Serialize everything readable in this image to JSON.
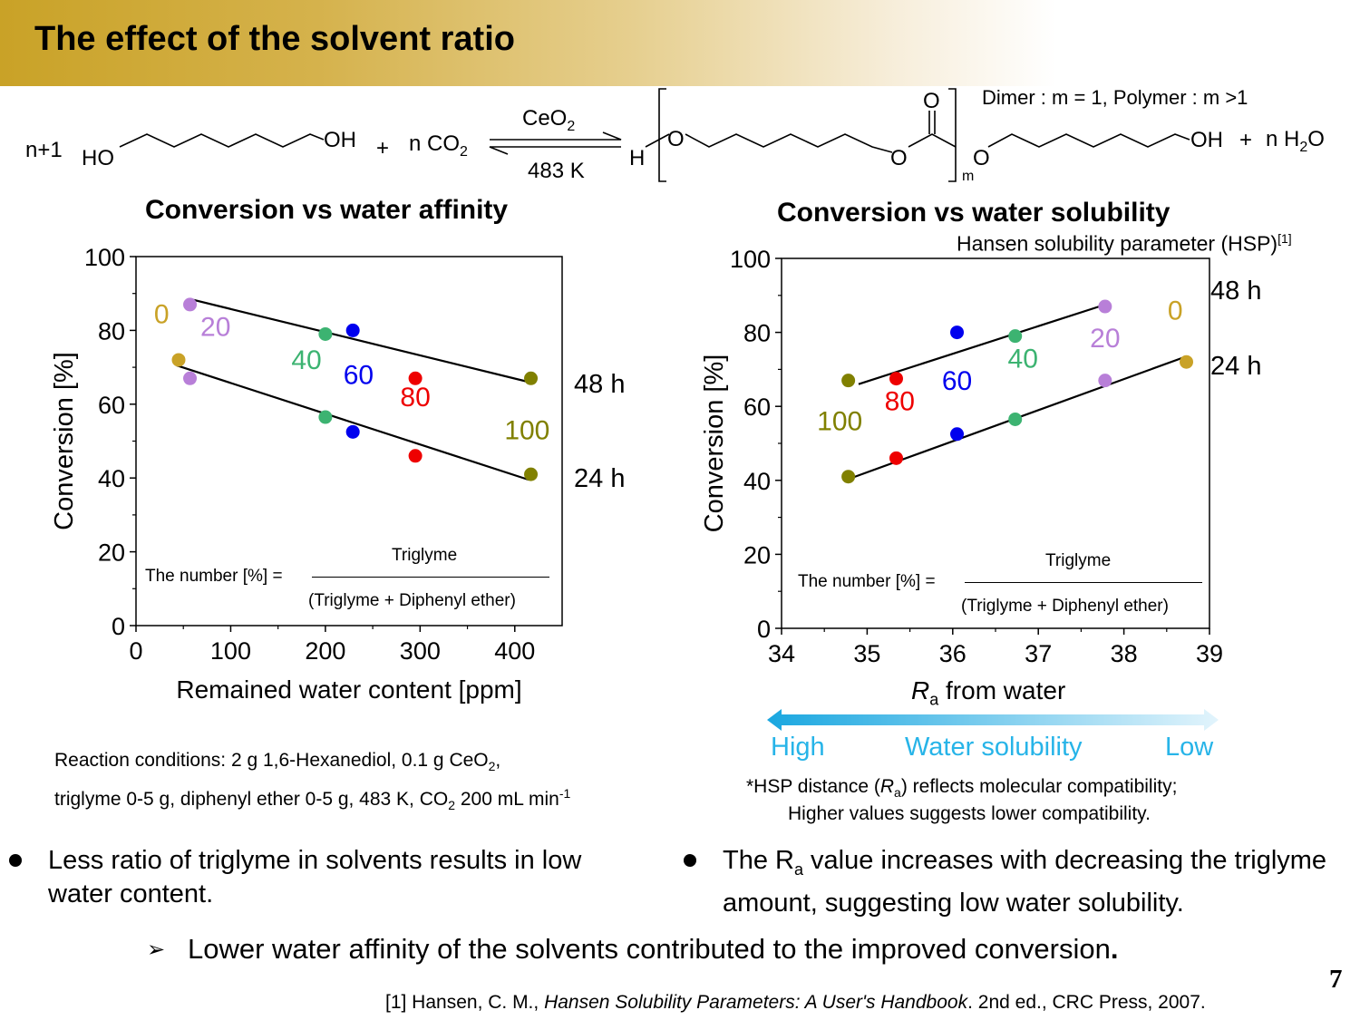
{
  "slide": {
    "title": "The effect of the solvent ratio",
    "page_number": "7"
  },
  "reaction": {
    "coef": "n+1",
    "ho": "HO",
    "oh": "OH",
    "plus1": "+",
    "co2": "n CO",
    "co2_sub": "2",
    "catalyst": "CeO",
    "catalyst_sub": "2",
    "temp": "483 K",
    "h": "H",
    "o1": "O",
    "o2": "O",
    "o3": "O",
    "o4": "O",
    "m": "m",
    "oh2": "OH",
    "plus2": "+",
    "water": "n H",
    "water_sub": "2",
    "water_o": "O",
    "note": "Dimer : m = 1, Polymer : m >1"
  },
  "left_panel": {
    "title": "Conversion vs water affinity",
    "formula_lhs": "The number [%] =",
    "formula_num": "Triglyme",
    "formula_den": "(Triglyme + Diphenyl ether)",
    "conditions_line1": "Reaction conditions: 2 g 1,6-Hexanediol, 0.1 g CeO",
    "conditions_sub1": "2",
    "conditions_tail1": ",",
    "conditions_line2": "triglyme 0-5 g, diphenyl ether 0-5 g, 483 K, CO",
    "conditions_sub2": "2",
    "conditions_tail2": " 200 mL min",
    "conditions_sup2": "-1"
  },
  "right_panel": {
    "title": "Conversion vs water solubility",
    "subtitle": "Hansen solubility parameter (HSP)",
    "subtitle_ref": "[1]",
    "formula_lhs": "The number [%] =",
    "formula_num": "Triglyme",
    "formula_den": "(Triglyme + Diphenyl ether)",
    "arrow_high": "High",
    "arrow_mid": "Water solubility",
    "arrow_low": "Low",
    "note_line1_a": "*HSP distance (",
    "note_line1_ra": "R",
    "note_line1_sub": "a",
    "note_line1_b": ") reflects molecular compatibility;",
    "note_line2": "Higher values suggests lower compatibility."
  },
  "bullets": {
    "left": "Less ratio of triglyme in solvents results in low water content.",
    "right_a": "The R",
    "right_sub": "a",
    "right_b": " value increases with decreasing the triglyme amount, suggesting low water solubility.",
    "conclusion": "Lower water affinity of the solvents contributed to the improved conversion",
    "conclusion_end": "."
  },
  "reference": {
    "a": "[1] Hansen, C. M., ",
    "b": "Hansen Solubility Parameters: A User's Handbook",
    "c": ". 2nd ed., CRC Press, 2007."
  },
  "colors": {
    "0": "#c9a227",
    "20": "#b87fd8",
    "40": "#3cb371",
    "60": "#0000ee",
    "80": "#ee0000",
    "100": "#808000",
    "accent_cyan": "#27b4e8"
  },
  "chart_data": [
    {
      "type": "scatter",
      "title": "Conversion vs water affinity",
      "xlabel": "Remained water content [ppm]",
      "ylabel": "Conversion [%]",
      "xlim": [
        0,
        450
      ],
      "ylim": [
        0,
        100
      ],
      "xticks": [
        "0",
        "100",
        "200",
        "300",
        "400"
      ],
      "yticks": [
        "0",
        "20",
        "40",
        "60",
        "80",
        "100"
      ],
      "series": [
        {
          "name": "48 h",
          "points": [
            {
              "ratio": "0",
              "x": 45,
              "y": 72
            },
            {
              "ratio": "20",
              "x": 57,
              "y": 87
            },
            {
              "ratio": "40",
              "x": 200,
              "y": 79
            },
            {
              "ratio": "60",
              "x": 229,
              "y": 80
            },
            {
              "ratio": "80",
              "x": 295,
              "y": 67
            },
            {
              "ratio": "100",
              "x": 417,
              "y": 67
            }
          ],
          "fit": [
            [
              57,
              88.5
            ],
            [
              415,
              66
            ]
          ]
        },
        {
          "name": "24 h",
          "points": [
            {
              "ratio": "20",
              "x": 57,
              "y": 67
            },
            {
              "ratio": "40",
              "x": 200,
              "y": 56.5
            },
            {
              "ratio": "60",
              "x": 229,
              "y": 52.5
            },
            {
              "ratio": "80",
              "x": 295,
              "y": 46
            },
            {
              "ratio": "100",
              "x": 417,
              "y": 41
            }
          ],
          "fit": [
            [
              43,
              70.5
            ],
            [
              415,
              39.5
            ]
          ]
        }
      ],
      "point_labels": [
        {
          "text": "0",
          "x": 27,
          "y": 82
        },
        {
          "text": "20",
          "x": 84,
          "y": 78.5
        },
        {
          "text": "40",
          "x": 180,
          "y": 69.5
        },
        {
          "text": "60",
          "x": 235,
          "y": 65.5
        },
        {
          "text": "80",
          "x": 295,
          "y": 59.5
        },
        {
          "text": "100",
          "x": 413,
          "y": 50.5
        }
      ]
    },
    {
      "type": "scatter",
      "title": "Conversion vs water solubility",
      "xlabel_italic": "R",
      "xlabel_sub": "a",
      "xlabel_rest": " from water",
      "ylabel": "Conversion [%]",
      "xlim": [
        34,
        39
      ],
      "ylim": [
        0,
        100
      ],
      "xticks": [
        "34",
        "35",
        "36",
        "37",
        "38",
        "39"
      ],
      "yticks": [
        "0",
        "20",
        "40",
        "60",
        "80",
        "100"
      ],
      "series": [
        {
          "name": "48 h",
          "points": [
            {
              "ratio": "100",
              "x": 34.78,
              "y": 67
            },
            {
              "ratio": "80",
              "x": 35.34,
              "y": 67.5
            },
            {
              "ratio": "60",
              "x": 36.05,
              "y": 80
            },
            {
              "ratio": "40",
              "x": 36.73,
              "y": 79
            },
            {
              "ratio": "20",
              "x": 37.78,
              "y": 87
            }
          ],
          "fit": [
            [
              34.9,
              66
            ],
            [
              37.78,
              87.5
            ]
          ]
        },
        {
          "name": "24 h",
          "points": [
            {
              "ratio": "100",
              "x": 34.78,
              "y": 41
            },
            {
              "ratio": "80",
              "x": 35.34,
              "y": 46
            },
            {
              "ratio": "60",
              "x": 36.05,
              "y": 52.5
            },
            {
              "ratio": "40",
              "x": 36.73,
              "y": 56.5
            },
            {
              "ratio": "20",
              "x": 37.78,
              "y": 67
            },
            {
              "ratio": "0",
              "x": 38.73,
              "y": 72
            }
          ],
          "fit": [
            [
              34.8,
              40.5
            ],
            [
              38.73,
              73.5
            ]
          ]
        }
      ],
      "point_labels": [
        {
          "text": "100",
          "x": 34.68,
          "y": 53.5
        },
        {
          "text": "80",
          "x": 35.38,
          "y": 59
        },
        {
          "text": "60",
          "x": 36.05,
          "y": 64.5
        },
        {
          "text": "40",
          "x": 36.82,
          "y": 70.5
        },
        {
          "text": "20",
          "x": 37.78,
          "y": 76
        },
        {
          "text": "0",
          "x": 38.6,
          "y": 83.5
        }
      ]
    }
  ]
}
